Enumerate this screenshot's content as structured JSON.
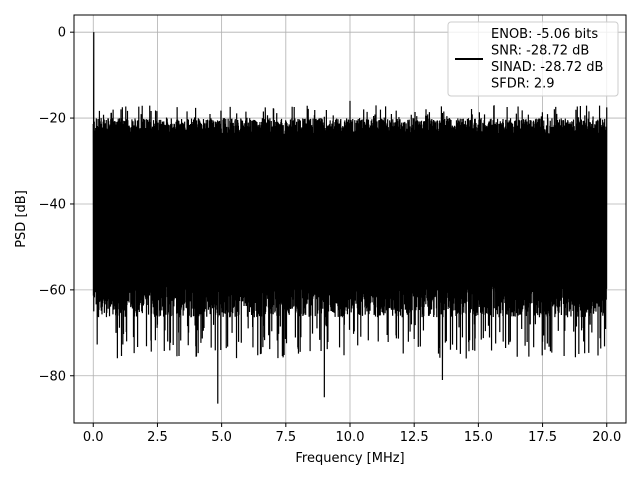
{
  "chart_data": {
    "type": "line",
    "xlabel": "Frequency [MHz]",
    "ylabel": "PSD [dB]",
    "xlim": [
      -0.75,
      20.75
    ],
    "ylim": [
      -91,
      4
    ],
    "x_ticks": [
      0.0,
      2.5,
      5.0,
      7.5,
      10.0,
      12.5,
      15.0,
      17.5,
      20.0
    ],
    "x_tick_labels": [
      "0.0",
      "2.5",
      "5.0",
      "7.5",
      "10.0",
      "12.5",
      "15.0",
      "17.5",
      "20.0"
    ],
    "y_ticks": [
      0,
      -20,
      -40,
      -60,
      -80
    ],
    "y_tick_labels": [
      "0",
      "−20",
      "−40",
      "−60",
      "−80"
    ],
    "grid": true,
    "legend_position": "top-right",
    "series": [
      {
        "name": "ENOB: -5.06 bits\nSNR: -28.72 dB\nSINAD: -28.72 dB\nSFDR: 2.9",
        "color": "#000000",
        "x_range": [
          0.0,
          20.0
        ],
        "peak": {
          "x": 0.02,
          "y": 0.0
        },
        "envelope_top": -22,
        "envelope_bottom": -62,
        "notable_minima": [
          {
            "x": 4.85,
            "y": -86.5
          },
          {
            "x": 9.0,
            "y": -85.0
          },
          {
            "x": 13.6,
            "y": -81.0
          },
          {
            "x": 7.4,
            "y": -75.5
          },
          {
            "x": 1.3,
            "y": -72.0
          }
        ],
        "notable_maxima": [
          {
            "x": 10.0,
            "y": -16.0
          },
          {
            "x": 20.0,
            "y": -17.5
          },
          {
            "x": 6.7,
            "y": -17.5
          }
        ]
      }
    ],
    "legend_lines": [
      "ENOB: -5.06 bits",
      "SNR: -28.72 dB",
      "SINAD: -28.72 dB",
      "SFDR: 2.9"
    ]
  }
}
